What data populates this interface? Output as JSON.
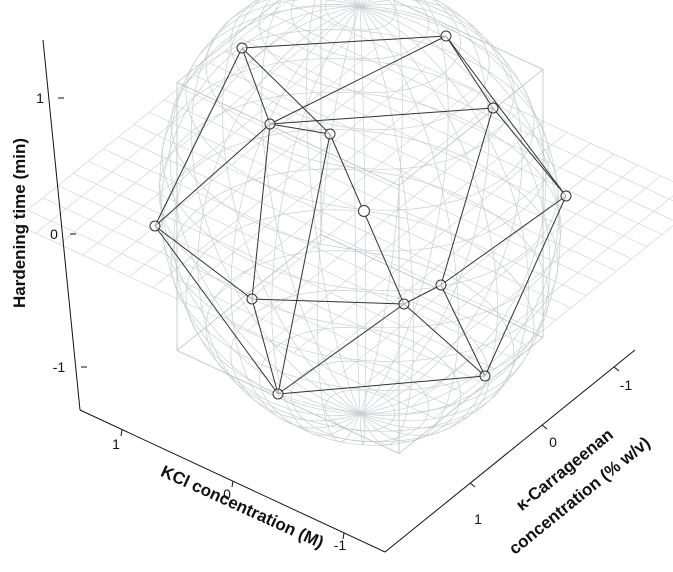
{
  "figure": {
    "axes": {
      "vertical": {
        "label": "Hardening time (min)",
        "ticks": [
          {
            "value": 1,
            "label": "1"
          },
          {
            "value": 0,
            "label": "0"
          },
          {
            "value": -1,
            "label": "-1"
          }
        ]
      },
      "kcl": {
        "label": "KCl concentration (M)",
        "ticks": [
          {
            "value": 1,
            "label": "1"
          },
          {
            "value": 0,
            "label": "0"
          },
          {
            "value": -1,
            "label": "-1"
          }
        ]
      },
      "carrageenan": {
        "label_line1": "κ-Carrageenan",
        "label_line2": "concentration (% w/v)",
        "ticks": [
          {
            "value": 1,
            "label": "1"
          },
          {
            "value": 0,
            "label": "0"
          },
          {
            "value": -1,
            "label": "-1"
          }
        ]
      }
    },
    "design": {
      "type": "icosahedral experimental design",
      "vertex_count": 12,
      "center_point_count": 1
    },
    "colors": {
      "wireframe": "#c9ced3",
      "edges": "#333333",
      "points": "#333333",
      "axes": "#111111"
    }
  }
}
